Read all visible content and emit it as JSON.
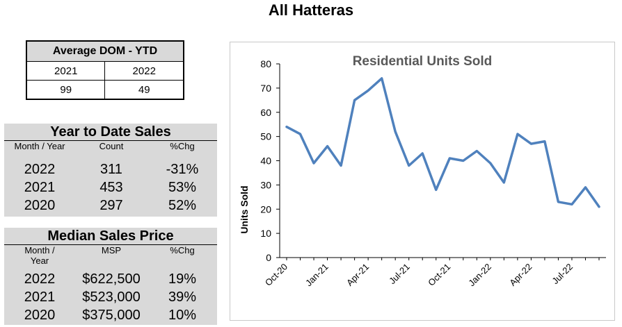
{
  "page_title": "All Hatteras",
  "dom_table": {
    "title": "Average DOM - YTD",
    "years": [
      "2021",
      "2022"
    ],
    "values": [
      "99",
      "49"
    ]
  },
  "ytd_sales": {
    "title": "Year to Date Sales",
    "headers": [
      "Month / Year",
      "Count",
      "%Chg"
    ],
    "rows": [
      {
        "year": "2022",
        "count": "311",
        "chg": "-31%"
      },
      {
        "year": "2021",
        "count": "453",
        "chg": "53%"
      },
      {
        "year": "2020",
        "count": "297",
        "chg": "52%"
      }
    ]
  },
  "median_price": {
    "title": "Median Sales Price",
    "headers": [
      "Month /\nYear",
      "MSP",
      "%Chg"
    ],
    "rows": [
      {
        "year": "2022",
        "msp": "$622,500",
        "chg": "19%"
      },
      {
        "year": "2021",
        "msp": "$523,000",
        "chg": "39%"
      },
      {
        "year": "2020",
        "msp": "$375,000",
        "chg": "10%"
      }
    ]
  },
  "chart_data": {
    "type": "line",
    "title": "Residential Units Sold",
    "xlabel": "",
    "ylabel": "Units Sold",
    "ylim": [
      0,
      80
    ],
    "yticks": [
      0,
      10,
      20,
      30,
      40,
      50,
      60,
      70,
      80
    ],
    "x": [
      "Oct-20",
      "Nov-20",
      "Dec-20",
      "Jan-21",
      "Feb-21",
      "Mar-21",
      "Apr-21",
      "May-21",
      "Jun-21",
      "Jul-21",
      "Aug-21",
      "Sep-21",
      "Oct-21",
      "Nov-21",
      "Dec-21",
      "Jan-22",
      "Feb-22",
      "Mar-22",
      "Apr-22",
      "May-22",
      "Jun-22",
      "Jul-22",
      "Aug-22",
      "Sep-22"
    ],
    "xtick_labels": [
      "Oct-20",
      "Jan-21",
      "Apr-21",
      "Jul-21",
      "Oct-21",
      "Jan-22",
      "Apr-22",
      "Jul-22"
    ],
    "series": [
      {
        "values": [
          54,
          51,
          39,
          46,
          38,
          65,
          69,
          74,
          52,
          38,
          43,
          28,
          41,
          40,
          44,
          39,
          31,
          51,
          47,
          48,
          23,
          22,
          29,
          21
        ]
      }
    ],
    "line_color": "#4f81bd",
    "grid": false
  }
}
